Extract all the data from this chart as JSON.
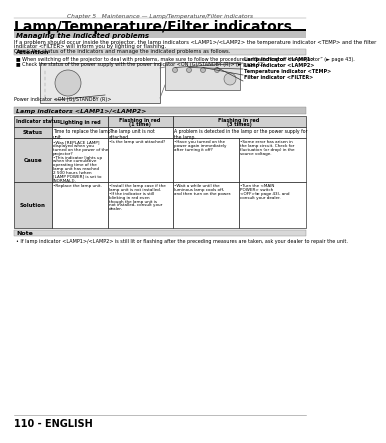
{
  "page_num": "110 - ENGLISH",
  "chapter_header": "Chapter 5   Maintenance — Lamp/Temperature/Filter indicators",
  "title": "Lamp/Temperature/Filter indicators",
  "section1_title": "Managing the indicated problems",
  "section1_body1": "If a problem should occur inside the projector, the lamp indicators <LAMP1>/<LAMP2> the temperature indicator <TEMP> and the filter",
  "section1_body2": "indicator <FILTER> will inform you by lighting or flashing.",
  "section1_body3": "Check the status of the indicators and manage the indicated problems as follows.",
  "attention_title": "Attention",
  "att_bullet1": "When switching off the projector to deal with problems, make sure to follow the procedure in “Switching off the projector” (► page 43).",
  "att_bullet2": "Check the status of the power supply with the power indicator <ON (G)/STANDBY (R)> (► page 42).",
  "lbl_power": "Power indicator <ON (G)/STANDBY (R)>",
  "lbl_lamp1": "Lamp indicator <LAMP1>",
  "lbl_lamp2": "Lamp indicator <LAMP2>",
  "lbl_temp": "Temperature indicator <TEMP>",
  "lbl_filter": "Filter indicator <FILTER>",
  "table_title": "Lamp indicators <LAMP1>/<LAMP2>",
  "col0": "Indicator status",
  "col1": "Lighting in red",
  "col2_l1": "Flashing in red",
  "col2_l2": "(1 time)",
  "col3_l1": "Flashing in red",
  "col3_l2": "(3 times)",
  "status_c1": "Time to replace the lamp\nunit.",
  "status_c2": "The lamp unit is not\nattached.",
  "status_c34": "A problem is detected in the lamp or the power supply for\nthe lamp.",
  "cause_c1l1": "•Was [REPLACE LAMP]",
  "cause_c1l2": "displayed when you",
  "cause_c1l3": "turned on the power of the",
  "cause_c1l4": "projector?",
  "cause_c1l5": "•This indicator lights up",
  "cause_c1l6": "when the cumulative",
  "cause_c1l7": "operating time of the",
  "cause_c1l8": "lamp unit has reached",
  "cause_c1l9": "2 500 hours (when",
  "cause_c1l10": "[LAMP POWER] is set to",
  "cause_c1l11": "[NORMAL]).",
  "cause_c2": "•Is the lamp unit attached?",
  "cause_c3l1": "•Have you turned on the",
  "cause_c3l2": "power again immediately",
  "cause_c3l3": "after turning it off?",
  "cause_c4l1": "•Some error has arisen in",
  "cause_c4l2": "the lamp circuit. Check for",
  "cause_c4l3": "fluctuation (or drop) in the",
  "cause_c4l4": "source voltage.",
  "sol_c1": "•Replace the lamp unit.",
  "sol_c2l1": "•Install the lamp case if the",
  "sol_c2l2": "lamp unit is not installed.",
  "sol_c2l3": "•If the indicator is still",
  "sol_c2l4": "blinking in red even",
  "sol_c2l5": "though the lamp unit is",
  "sol_c2l6": "not installed, consult your",
  "sol_c2l7": "dealer.",
  "sol_c3l1": "•Wait a while until the",
  "sol_c3l2": "luminous lamp cools off,",
  "sol_c3l3": "and then turn on the power.",
  "sol_c4l1": "•Turn the <MAIN",
  "sol_c4l2": "POWER> switch",
  "sol_c4l3": "<OFF>(► page 43), and",
  "sol_c4l4": "consult your dealer.",
  "note_title": "Note",
  "note_text": "• If lamp indicator <LAMP1>/<LAMP2> is still lit or flashing after the preceding measures are taken, ask your dealer to repair the unit.",
  "bg": "#ffffff",
  "gray_dark": "#a0a0a0",
  "gray_mid": "#c0c0c0",
  "gray_light": "#d8d8d8",
  "gray_row": "#d0d0d0",
  "black": "#000000"
}
